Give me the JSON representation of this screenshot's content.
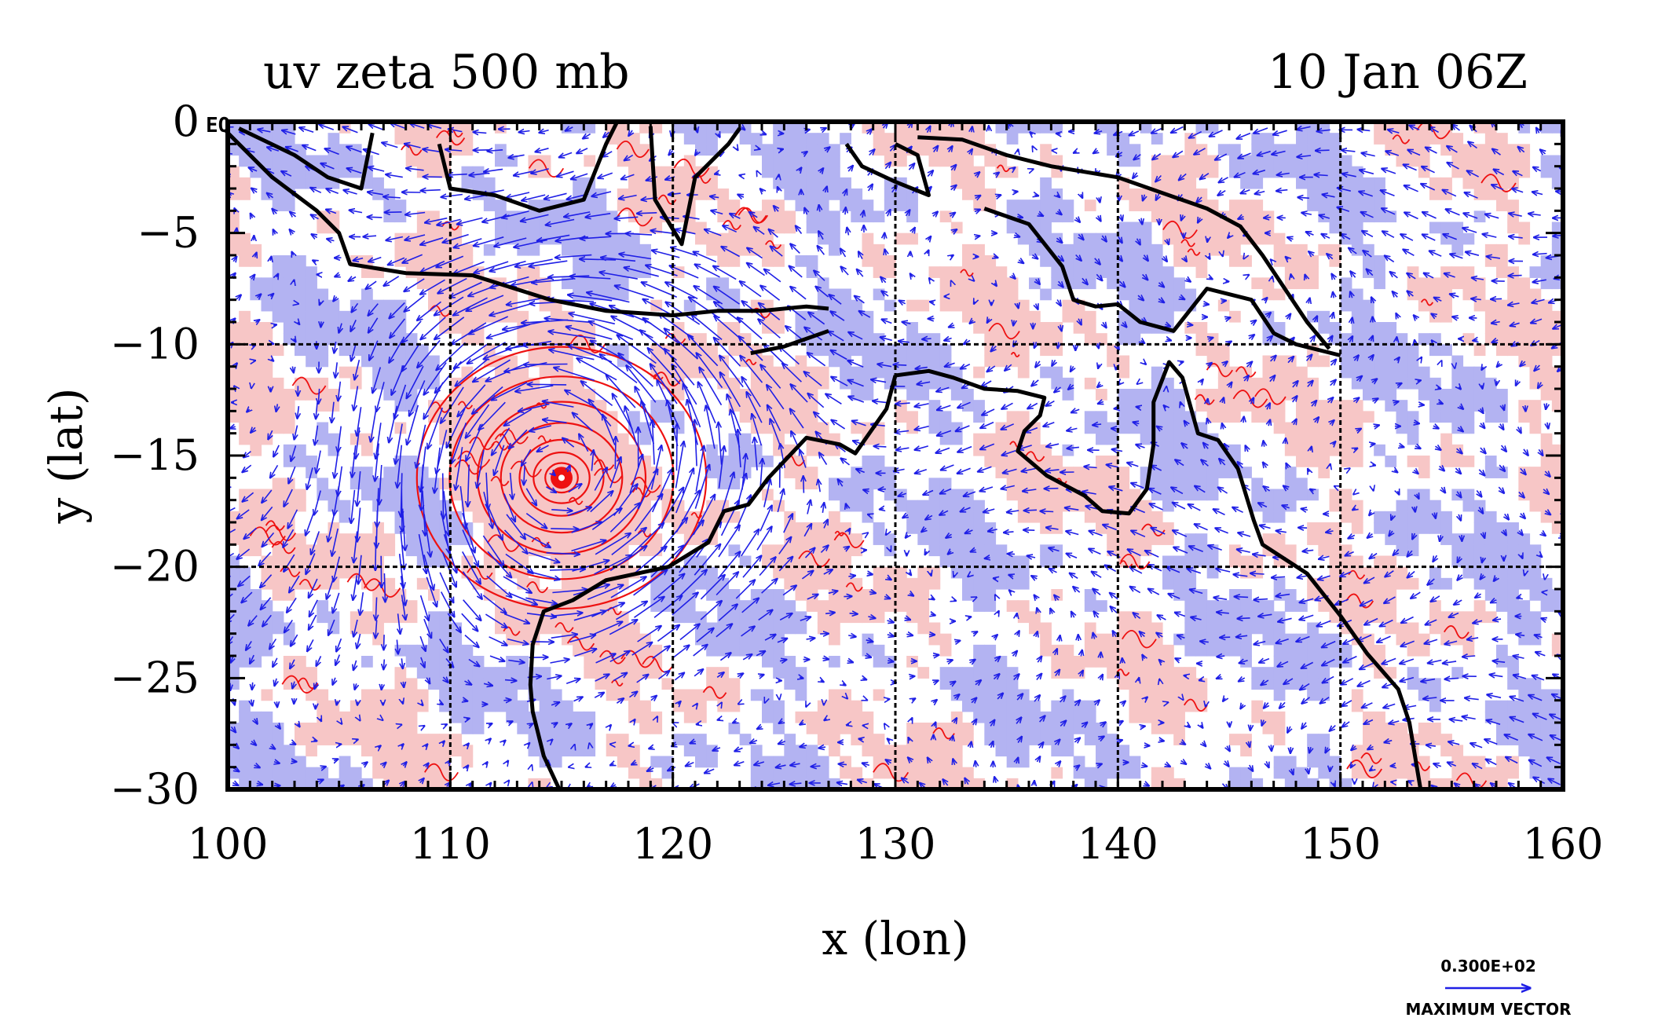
{
  "chart_data": {
    "type": "map",
    "title_left": "uv zeta 500 mb",
    "title_right": "10 Jan 06Z",
    "xlabel": "x (lon)",
    "ylabel": "y (lat)",
    "xlim": [
      100,
      160
    ],
    "ylim": [
      -30,
      0
    ],
    "x_ticks": [
      100,
      110,
      120,
      130,
      140,
      150,
      160
    ],
    "y_ticks": [
      0,
      -5,
      -10,
      -15,
      -20,
      -25,
      -30
    ],
    "grid_lines_x": [
      110,
      120,
      130,
      140,
      150
    ],
    "grid_lines_y": [
      -10,
      -20
    ],
    "eq_label": "EQ",
    "vector_reference": {
      "value_label": "0.300E+02",
      "caption": "MAXIMUM VECTOR"
    },
    "colors": {
      "vectors": "#1f1fe6",
      "positive_fill": "#f7c6c6",
      "positive_contour": "#ee1111",
      "negative_fill": "#b3b3f2",
      "coast": "#000000"
    },
    "cyclone_center": {
      "lon": 115,
      "lat": -16
    },
    "coastlines": [
      [
        [
          100,
          -0.5
        ],
        [
          102,
          -2.5
        ],
        [
          104,
          -4
        ],
        [
          105,
          -5
        ],
        [
          105.5,
          -6.4
        ],
        [
          108,
          -6.8
        ],
        [
          111,
          -6.9
        ],
        [
          114.5,
          -8
        ],
        [
          117,
          -8.5
        ],
        [
          120,
          -8.7
        ],
        [
          122,
          -8.5
        ],
        [
          124,
          -8.5
        ],
        [
          126,
          -8.3
        ],
        [
          127,
          -8.4
        ]
      ],
      [
        [
          100.5,
          -0.3
        ],
        [
          103,
          -1.5
        ],
        [
          104.5,
          -2.5
        ],
        [
          106,
          -3
        ],
        [
          106.5,
          -0.5
        ]
      ],
      [
        [
          109.5,
          -1
        ],
        [
          110,
          -3
        ],
        [
          112,
          -3.3
        ],
        [
          114,
          -4
        ],
        [
          116,
          -3.5
        ],
        [
          117,
          -1
        ],
        [
          117.5,
          0
        ]
      ],
      [
        [
          119,
          -0.2
        ],
        [
          119.2,
          -3.5
        ],
        [
          120.4,
          -5.5
        ],
        [
          121,
          -2.5
        ],
        [
          122.5,
          -1
        ],
        [
          123,
          -0.3
        ]
      ],
      [
        [
          127.8,
          -1
        ],
        [
          128.5,
          -2
        ],
        [
          130,
          -2.7
        ],
        [
          131.5,
          -3.3
        ],
        [
          131,
          -1.5
        ],
        [
          130,
          -1
        ]
      ],
      [
        [
          131,
          -0.7
        ],
        [
          133,
          -0.8
        ],
        [
          135,
          -1.5
        ],
        [
          137,
          -2
        ],
        [
          140,
          -2.5
        ],
        [
          142,
          -3.2
        ],
        [
          144,
          -3.9
        ],
        [
          145.5,
          -4.7
        ],
        [
          146.5,
          -6
        ],
        [
          147.5,
          -7.5
        ],
        [
          148.5,
          -9
        ],
        [
          149.5,
          -10.2
        ]
      ],
      [
        [
          134,
          -3.9
        ],
        [
          136,
          -4.6
        ],
        [
          137.5,
          -6.5
        ],
        [
          138,
          -8
        ],
        [
          139,
          -8.3
        ],
        [
          140,
          -8.2
        ],
        [
          141,
          -9
        ],
        [
          142.5,
          -9.4
        ],
        [
          144,
          -7.5
        ],
        [
          146,
          -8
        ],
        [
          147,
          -9.5
        ],
        [
          148,
          -10
        ],
        [
          150,
          -10.5
        ]
      ],
      [
        [
          127,
          -9.4
        ],
        [
          125,
          -10.1
        ],
        [
          123.5,
          -10.4
        ]
      ],
      [
        [
          130,
          -11.4
        ],
        [
          131.5,
          -11.2
        ],
        [
          132.6,
          -11.5
        ],
        [
          134,
          -12
        ],
        [
          135.5,
          -12.1
        ],
        [
          136.7,
          -12.4
        ],
        [
          136.5,
          -13.2
        ],
        [
          135.8,
          -13.9
        ],
        [
          135.5,
          -14.8
        ],
        [
          136.8,
          -15.9
        ],
        [
          138.5,
          -16.8
        ],
        [
          139.3,
          -17.5
        ],
        [
          140.5,
          -17.6
        ],
        [
          141.3,
          -16.5
        ],
        [
          141.6,
          -14.5
        ],
        [
          141.6,
          -12.6
        ],
        [
          142.3,
          -10.8
        ],
        [
          142.9,
          -11.5
        ],
        [
          143.6,
          -14
        ],
        [
          144.5,
          -14.3
        ],
        [
          145.4,
          -15.6
        ],
        [
          146.1,
          -17.9
        ],
        [
          146.5,
          -19
        ],
        [
          148.5,
          -20.3
        ],
        [
          150,
          -22.2
        ],
        [
          151.2,
          -23.9
        ],
        [
          152.6,
          -25.5
        ],
        [
          153.1,
          -27
        ],
        [
          153.6,
          -30
        ]
      ],
      [
        [
          130,
          -11.4
        ],
        [
          129.6,
          -12.9
        ],
        [
          128.2,
          -14.9
        ],
        [
          127.5,
          -14.5
        ],
        [
          126,
          -14.2
        ],
        [
          124.3,
          -16
        ],
        [
          123.4,
          -17.2
        ],
        [
          122.3,
          -17.5
        ],
        [
          121.6,
          -18.9
        ],
        [
          119.8,
          -20
        ],
        [
          117,
          -20.6
        ],
        [
          115.5,
          -21.5
        ],
        [
          114.2,
          -22
        ],
        [
          113.7,
          -23.5
        ],
        [
          113.6,
          -25.3
        ],
        [
          113.7,
          -26.5
        ],
        [
          114.2,
          -28.5
        ],
        [
          114.9,
          -30
        ]
      ]
    ]
  }
}
